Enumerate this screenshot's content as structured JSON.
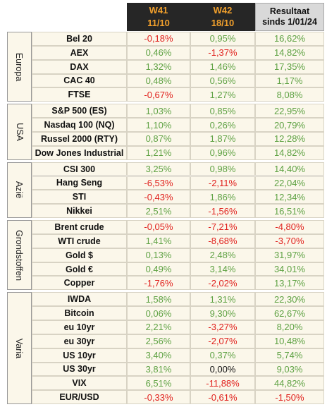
{
  "header": {
    "columns": [
      {
        "week": "W41",
        "date": "11/10"
      },
      {
        "week": "W42",
        "date": "18/10"
      },
      {
        "line1": "Resultaat",
        "line2": "sinds 1/01/24"
      }
    ]
  },
  "groups": [
    {
      "name": "Europa",
      "rows": [
        {
          "name": "Bel 20",
          "values": [
            "-0,18%",
            "0,95%",
            "16,62%"
          ]
        },
        {
          "name": "AEX",
          "values": [
            "0,46%",
            "-1,37%",
            "14,82%"
          ]
        },
        {
          "name": "DAX",
          "values": [
            "1,32%",
            "1,46%",
            "17,35%"
          ]
        },
        {
          "name": "CAC 40",
          "values": [
            "0,48%",
            "0,56%",
            "1,17%"
          ]
        },
        {
          "name": "FTSE",
          "values": [
            "-0,67%",
            "1,27%",
            "8,08%"
          ]
        }
      ]
    },
    {
      "name": "USA",
      "rows": [
        {
          "name": "S&P 500 (ES)",
          "values": [
            "1,03%",
            "0,85%",
            "22,95%"
          ]
        },
        {
          "name": "Nasdaq 100 (NQ)",
          "values": [
            "1,10%",
            "0,26%",
            "20,79%"
          ]
        },
        {
          "name": "Russel 2000 (RTY)",
          "values": [
            "0,87%",
            "1,87%",
            "12,28%"
          ]
        },
        {
          "name": "Dow Jones Industrial",
          "values": [
            "1,21%",
            "0,96%",
            "14,82%"
          ]
        }
      ]
    },
    {
      "name": "Azië",
      "rows": [
        {
          "name": "CSI 300",
          "values": [
            "3,25%",
            "0,98%",
            "14,40%"
          ]
        },
        {
          "name": "Hang Seng",
          "values": [
            "-6,53%",
            "-2,11%",
            "22,04%"
          ]
        },
        {
          "name": "STI",
          "values": [
            "-0,43%",
            "1,86%",
            "12,34%"
          ]
        },
        {
          "name": "Nikkei",
          "values": [
            "2,51%",
            "-1,56%",
            "16,51%"
          ]
        }
      ]
    },
    {
      "name": "Grondstoffen",
      "rows": [
        {
          "name": "Brent crude",
          "values": [
            "-0,05%",
            "-7,21%",
            "-4,80%"
          ]
        },
        {
          "name": "WTI crude",
          "values": [
            "1,41%",
            "-8,68%",
            "-3,70%"
          ]
        },
        {
          "name": "Gold $",
          "values": [
            "0,13%",
            "2,48%",
            "31,97%"
          ]
        },
        {
          "name": "Gold €",
          "values": [
            "0,49%",
            "3,14%",
            "34,01%"
          ]
        },
        {
          "name": "Copper",
          "values": [
            "-1,76%",
            "-2,02%",
            "13,17%"
          ]
        }
      ]
    },
    {
      "name": "Varia",
      "rows": [
        {
          "name": "IWDA",
          "values": [
            "1,58%",
            "1,31%",
            "22,30%"
          ]
        },
        {
          "name": "Bitcoin",
          "values": [
            "0,06%",
            "9,30%",
            "62,67%"
          ]
        },
        {
          "name": "eu 10yr",
          "values": [
            "2,21%",
            "-3,27%",
            "8,20%"
          ]
        },
        {
          "name": "eu 30yr",
          "values": [
            "2,56%",
            "-2,07%",
            "10,48%"
          ]
        },
        {
          "name": "US 10yr",
          "values": [
            "3,40%",
            "0,37%",
            "5,74%"
          ]
        },
        {
          "name": "US 30yr",
          "values": [
            "3,81%",
            "0,00%",
            "9,03%"
          ]
        },
        {
          "name": "VIX",
          "values": [
            "6,51%",
            "-11,88%",
            "44,82%"
          ]
        },
        {
          "name": "EUR/USD",
          "values": [
            "-0,33%",
            "-0,61%",
            "-1,50%"
          ]
        }
      ]
    }
  ]
}
